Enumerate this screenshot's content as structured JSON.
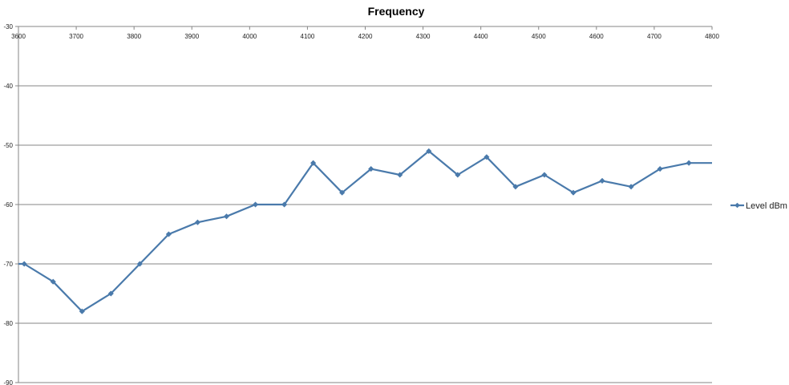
{
  "chart_data": {
    "type": "line",
    "title": "Frequency",
    "xlabel": "",
    "ylabel": "",
    "xlim": [
      3600,
      4800
    ],
    "ylim": [
      -90,
      -30
    ],
    "x_ticks": [
      "3600",
      "3700",
      "3800",
      "3900",
      "4000",
      "4100",
      "4200",
      "4300",
      "4400",
      "4500",
      "4600",
      "4700",
      "4800"
    ],
    "y_ticks": [
      "-30",
      "-40",
      "-50",
      "-60",
      "-70",
      "-80",
      "-90"
    ],
    "x_ticks_position": "top",
    "grid": "horizontal",
    "legend": "right",
    "series": [
      {
        "name": "Level dBm",
        "color": "#4A7AAB",
        "marker": "diamond",
        "x": [
          3610,
          3660,
          3710,
          3760,
          3810,
          3860,
          3910,
          3960,
          4010,
          4060,
          4110,
          4160,
          4210,
          4260,
          4310,
          4360,
          4410,
          4460,
          4510,
          4560,
          4610,
          4660,
          4710,
          4760
        ],
        "values": [
          -70,
          -73,
          -78,
          -75,
          -70,
          -65,
          -63,
          -62,
          -60,
          -60,
          -53,
          -58,
          -54,
          -55,
          -51,
          -55,
          -52,
          -57,
          -55,
          -58,
          -56,
          -57,
          -54,
          -53
        ]
      }
    ]
  }
}
